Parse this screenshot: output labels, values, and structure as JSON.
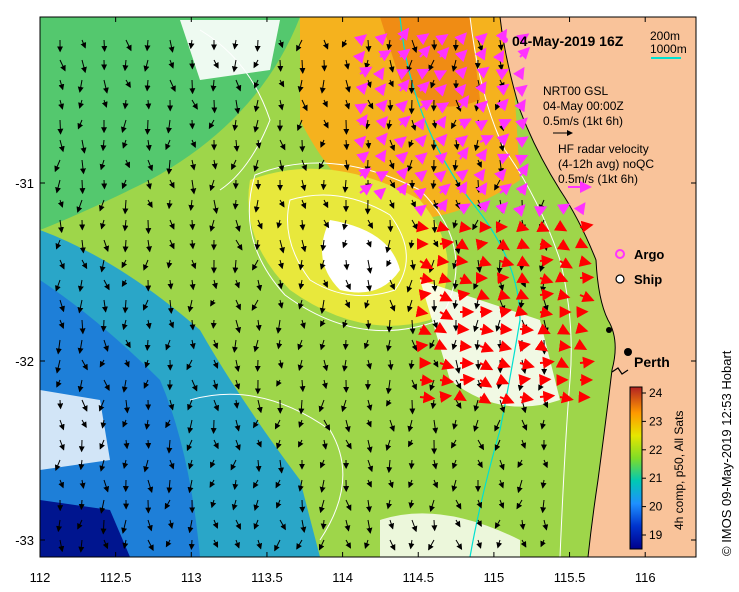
{
  "title": "04-May-2019 16Z",
  "depth_legend": {
    "line1": "200m",
    "line2": "1000m"
  },
  "gsl": {
    "line1": "NRT00 GSL",
    "line2": "04-May 00:00Z",
    "line3": "0.5m/s (1kt 6h)"
  },
  "hf": {
    "line1": "HF radar velocity",
    "line2": "(4-12h avg) noQC",
    "line3": "0.5m/s (1kt 6h)"
  },
  "markers": {
    "argo": "Argo",
    "ship": "Ship"
  },
  "city": "Perth",
  "colorbar": {
    "label": "4h comp, p50, All Sats",
    "ticks": [
      "19",
      "20",
      "21",
      "22",
      "23",
      "24"
    ]
  },
  "x_ticks": [
    "112",
    "112.5",
    "113",
    "113.5",
    "114",
    "114.5",
    "115",
    "115.5",
    "116"
  ],
  "y_ticks": [
    "-31",
    "-32",
    "-33"
  ],
  "credit": "© IMOS 09-May-2019 12:53 Hobart",
  "colors": {
    "land": "#F9C39A",
    "argo": "#ff33ff",
    "hf_arrow": "#ff0000",
    "gsl_arrow": "#000000",
    "isobath_200": "#ffffff",
    "isobath_1000": "#00e0d0"
  },
  "map_extent": {
    "lon": [
      112,
      116.3
    ],
    "lat": [
      -33.1,
      -30.0
    ]
  }
}
